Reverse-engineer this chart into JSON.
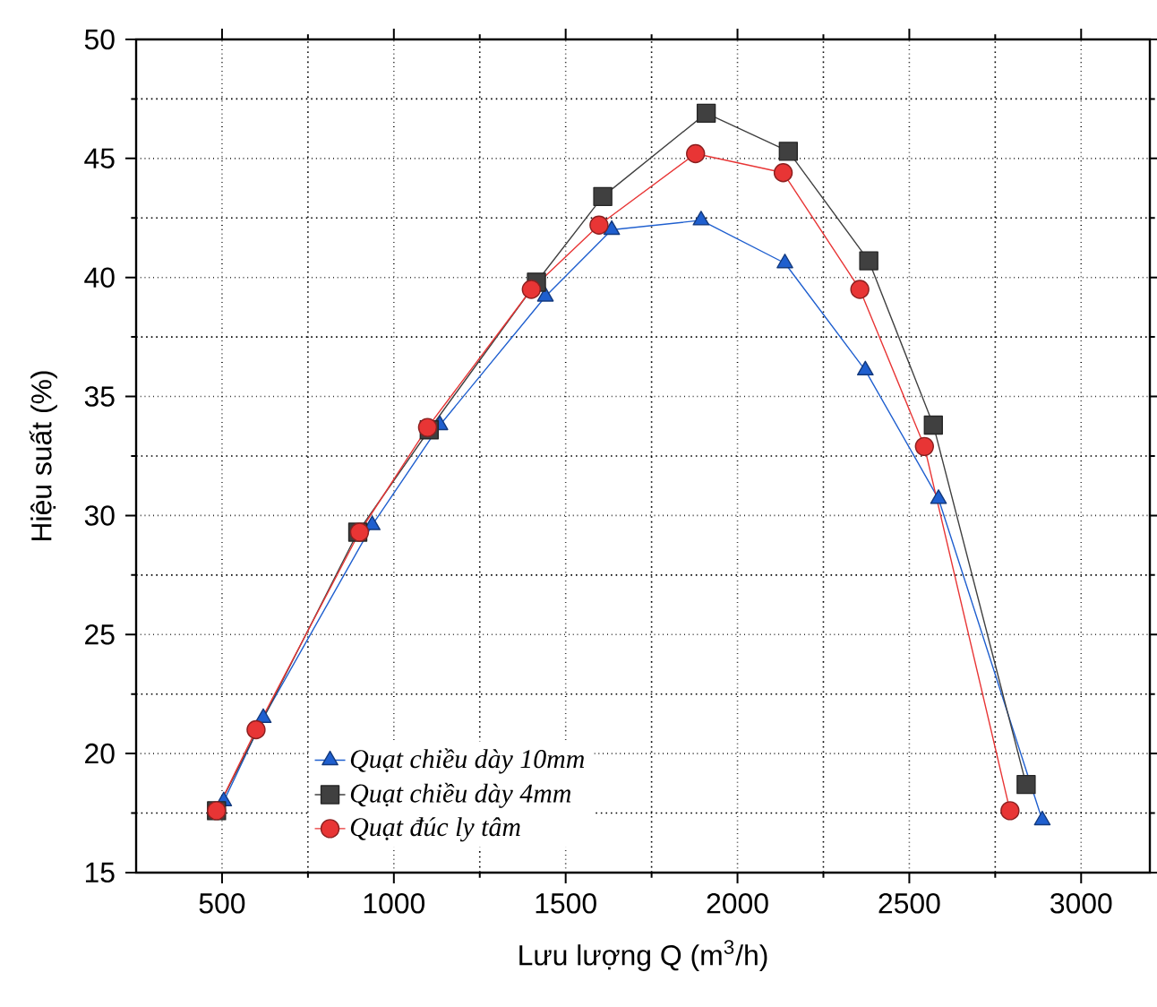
{
  "chart_data": {
    "type": "line",
    "xlabel": "Lưu lượng Q (m$^{3}$/h)",
    "ylabel": "Hiệu suất (%)",
    "xlim": [
      250,
      3200
    ],
    "ylim": [
      15,
      50
    ],
    "xticks": [
      500,
      1000,
      1500,
      2000,
      2500,
      3000
    ],
    "yticks": [
      15,
      20,
      25,
      30,
      35,
      40,
      45,
      50
    ],
    "grid": true,
    "legend": "bottom left",
    "line_style": "solid",
    "series": [
      {
        "name": "Quạt chiều dày 10mm",
        "color": "#1f5fcf",
        "marker": "triangle",
        "x": [
          505,
          620,
          937,
          1134,
          1441,
          1634,
          1894,
          2138,
          2372,
          2585,
          2887
        ],
        "values": [
          18.0,
          21.5,
          29.6,
          33.8,
          39.2,
          42.0,
          42.4,
          40.6,
          36.1,
          30.7,
          17.2
        ]
      },
      {
        "name": "Quạt chiều dày 4mm",
        "color": "#404040",
        "marker": "square",
        "x": [
          484,
          599,
          895,
          1103,
          1415,
          1608,
          1909,
          2148,
          2382,
          2570,
          2840
        ],
        "values": [
          17.6,
          null,
          29.3,
          33.6,
          39.8,
          43.4,
          46.9,
          45.3,
          40.7,
          33.8,
          18.7
        ]
      },
      {
        "name": "Quạt đúc ly tâm",
        "color": "#e83535",
        "marker": "circle",
        "x": [
          484,
          599,
          900,
          1098,
          1400,
          1597,
          1878,
          2133,
          2356,
          2544,
          2793
        ],
        "values": [
          17.6,
          21.0,
          29.3,
          33.7,
          39.5,
          42.2,
          45.2,
          44.4,
          39.5,
          32.9,
          17.6
        ]
      }
    ]
  }
}
